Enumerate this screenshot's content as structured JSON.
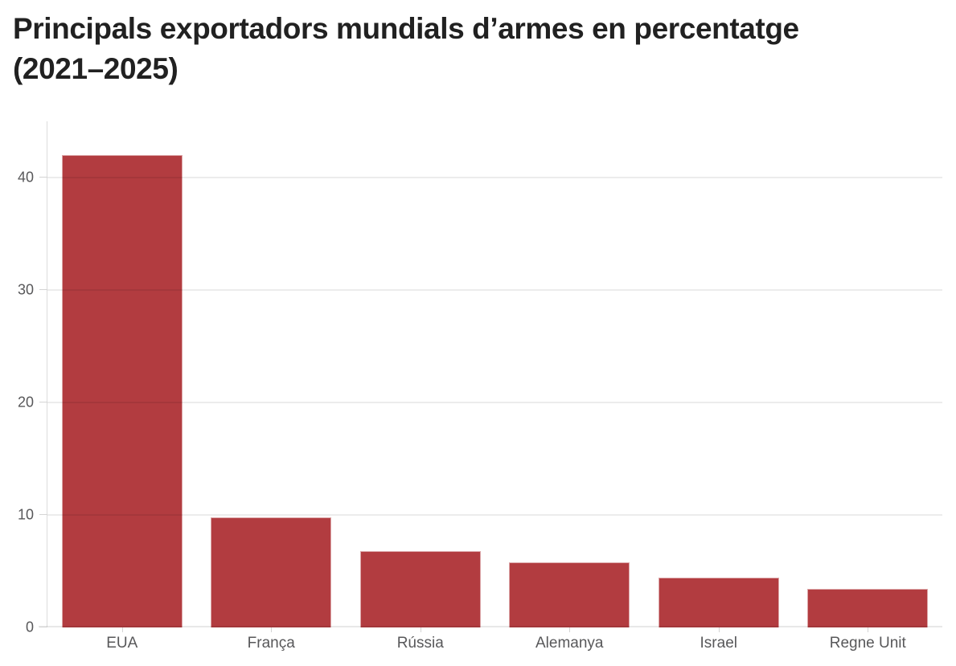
{
  "title_lines": [
    "Principals exportadors mundials d’armes en percentatge",
    "(2021–2025)"
  ],
  "chart_data": {
    "type": "bar",
    "title": "Principals exportadors mundials d’armes en percentatge (2021–2025)",
    "categories": [
      "EUA",
      "França",
      "Rússia",
      "Alemanya",
      "Israel",
      "Regne Unit"
    ],
    "values": [
      42,
      9.8,
      6.8,
      5.8,
      4.4,
      3.4
    ],
    "xlabel": "",
    "ylabel": "",
    "ylim": [
      0,
      45
    ],
    "yticks": [
      0,
      10,
      20,
      30,
      40
    ],
    "grid": true,
    "grid_over_bars": true,
    "legend": false,
    "bar_color": "#b23c40",
    "axis_text_color": "#58585a",
    "grid_color": "rgba(0,0,0,0.075)",
    "title_color": "#212121"
  }
}
